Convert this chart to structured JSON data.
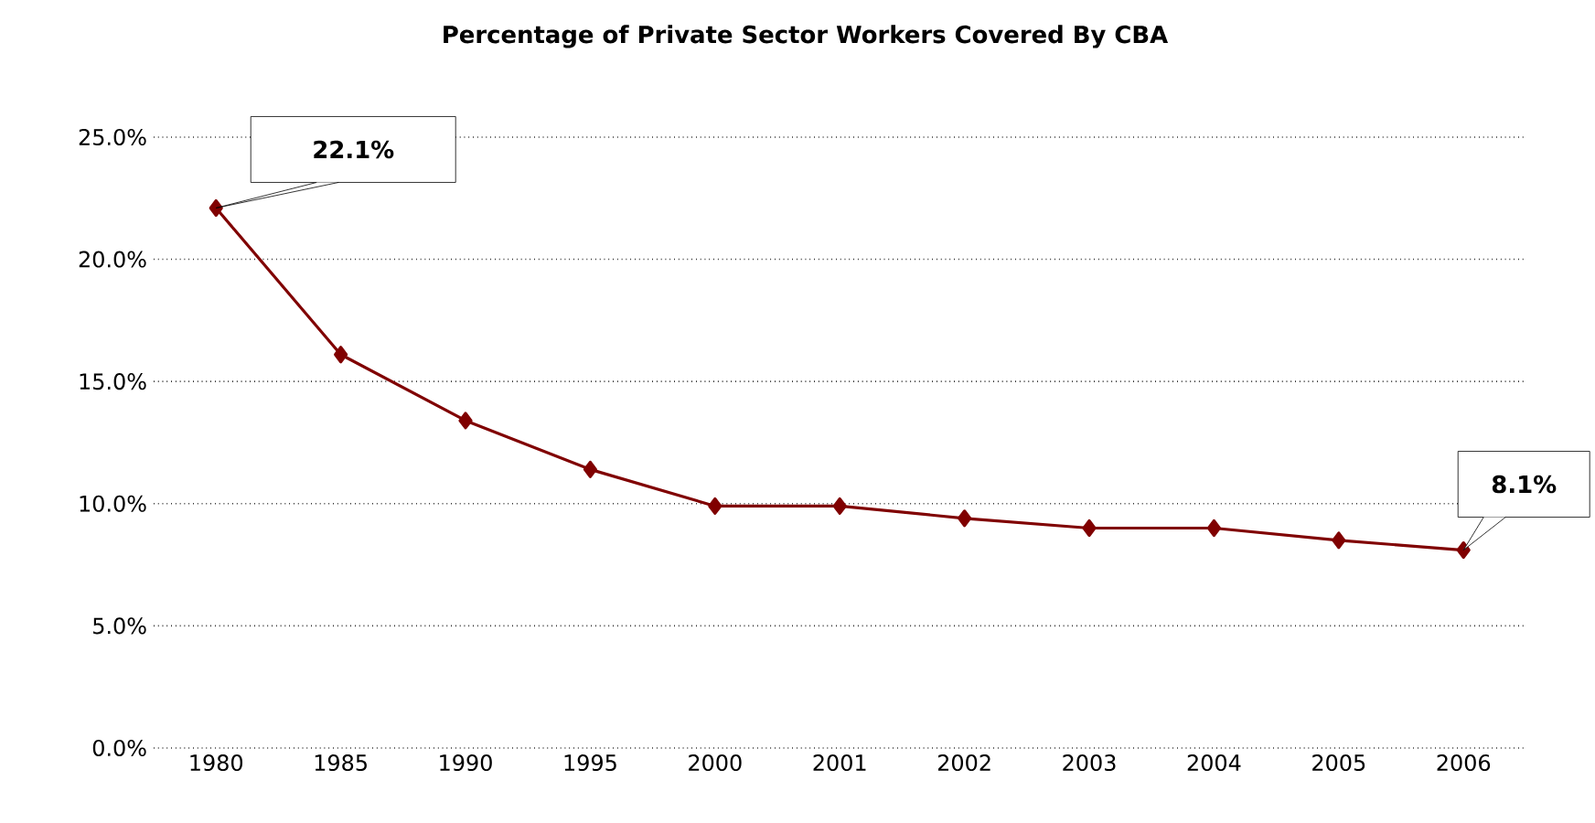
{
  "chart_data": {
    "type": "line",
    "title": "Percentage of Private Sector Workers Covered By CBA",
    "categories": [
      "1980",
      "1985",
      "1990",
      "1995",
      "2000",
      "2001",
      "2002",
      "2003",
      "2004",
      "2005",
      "2006"
    ],
    "values": [
      22.1,
      16.1,
      13.4,
      11.4,
      9.9,
      9.9,
      9.4,
      9.0,
      9.0,
      8.5,
      8.1
    ],
    "color": "#800000",
    "marker": "diamond",
    "line_style": "solid",
    "grid": "y",
    "ylim": [
      0,
      25
    ],
    "yticks": [
      {
        "value": 0,
        "label": "0.0%"
      },
      {
        "value": 5,
        "label": "5.0%"
      },
      {
        "value": 10,
        "label": "10.0%"
      },
      {
        "value": 15,
        "label": "15.0%"
      },
      {
        "value": 20,
        "label": "20.0%"
      },
      {
        "value": 25,
        "label": "25.0%"
      }
    ],
    "annotations": [
      {
        "text": "22.1%",
        "x": "1980",
        "y": 22.1
      },
      {
        "text": "8.1%",
        "x": "2006",
        "y": 8.1
      }
    ]
  }
}
